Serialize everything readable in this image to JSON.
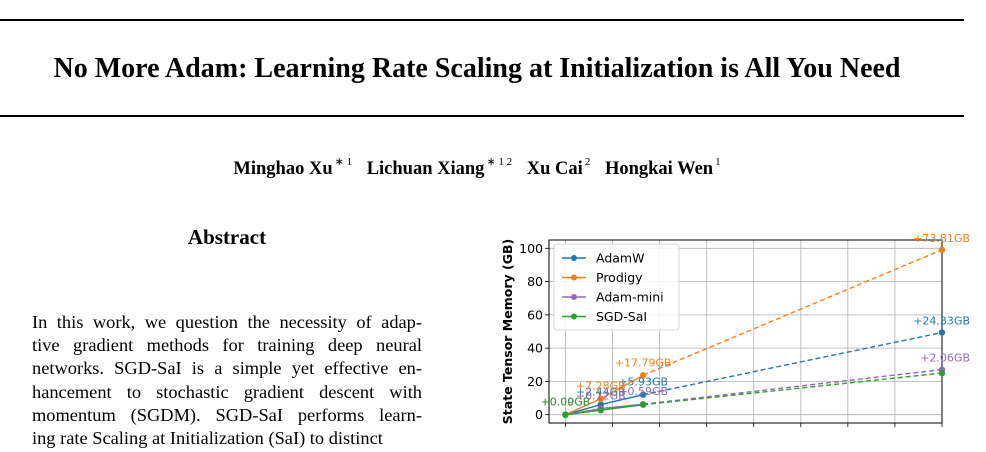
{
  "paper": {
    "title": "No More Adam: Learning Rate Scaling at Initialization is All You Need",
    "authors": [
      {
        "name": "Minghao Xu",
        "affil": "∗ 1"
      },
      {
        "name": "Lichuan Xiang",
        "affil": "∗ 1 2"
      },
      {
        "name": "Xu Cai",
        "affil": "2"
      },
      {
        "name": "Hongkai Wen",
        "affil": "1"
      }
    ],
    "abstract_heading": "Abstract",
    "abstract_lines": [
      "In this work, we question the necessity of adap-",
      "tive gradient methods for training deep neural",
      "networks. SGD-SaI is a simple yet effective en-",
      "hancement to stochastic gradient descent with",
      "momentum (SGDM). SGD-SaI performs learn-",
      "ing rate Scaling at Initialization (SaI) to distinct"
    ]
  },
  "chart_data": {
    "type": "line",
    "ylabel": "State Tensor Memory (GB)",
    "ylim": [
      -5,
      105
    ],
    "xlim": [
      -0.7,
      16
    ],
    "yticks": [
      0,
      20,
      40,
      60,
      80,
      100
    ],
    "legend_position": "top-left",
    "grid": true,
    "x": [
      0,
      1.5,
      3.3,
      16
    ],
    "series": [
      {
        "name": "AdamW",
        "color": "#1f77b4",
        "values": [
          0.0,
          6.1,
          12.0,
          49.4
        ],
        "annotations": [
          {
            "text": "+24.33GB",
            "index": 3
          },
          {
            "text": "+5.93GB",
            "index": 2
          },
          {
            "text": "+2.44GB",
            "index": 1
          }
        ]
      },
      {
        "name": "Prodigy",
        "color": "#ff7f0e",
        "values": [
          0.0,
          9.6,
          23.7,
          99.1
        ],
        "annotations": [
          {
            "text": "+73.81GB",
            "index": 3
          },
          {
            "text": "+17.79GB",
            "index": 2
          },
          {
            "text": "+7.28GB",
            "index": 1
          }
        ]
      },
      {
        "name": "Adam-mini",
        "color": "#9467bd",
        "values": [
          0.0,
          3.7,
          6.3,
          27.1
        ],
        "annotations": [
          {
            "text": "+2.06GB",
            "index": 3
          },
          {
            "text": "+0.59GB",
            "index": 2
          },
          {
            "text": "+0.12GB",
            "index": 1
          },
          {
            "text": "+0.09GB",
            "index": 0
          }
        ]
      },
      {
        "name": "SGD-SaI",
        "color": "#2ca02c",
        "values": [
          0.0,
          2.7,
          6.0,
          25.0
        ],
        "annotations": [
          {
            "text": "+0.00GB",
            "index": 0
          }
        ]
      }
    ]
  }
}
